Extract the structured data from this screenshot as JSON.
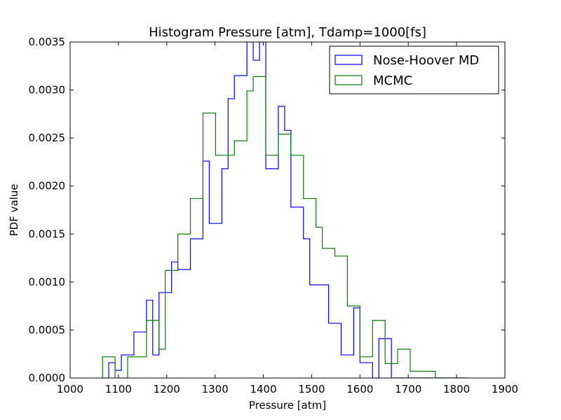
{
  "chart_data": {
    "type": "histogram",
    "title": "Histogram Pressure [atm], Tdamp=1000[fs]",
    "xlabel": "Pressure [atm]",
    "ylabel": "PDF value",
    "xlim": [
      1000,
      1900
    ],
    "ylim": [
      0,
      0.0035
    ],
    "x_ticks": [
      "1000",
      "1100",
      "1200",
      "1300",
      "1400",
      "1500",
      "1600",
      "1700",
      "1800",
      "1900"
    ],
    "y_ticks": [
      "0.0000",
      "0.0005",
      "0.0010",
      "0.0015",
      "0.0020",
      "0.0025",
      "0.0030",
      "0.0035"
    ],
    "legend_position": "top-right",
    "series": [
      {
        "name": "Nose-Hoover MD",
        "color": "#0000ff",
        "bin_edges": [
          1067,
          1080,
          1093,
          1106,
          1119,
          1132,
          1145,
          1158,
          1171,
          1184,
          1197,
          1210,
          1223,
          1236,
          1249,
          1262,
          1275,
          1288,
          1301,
          1314,
          1327,
          1340,
          1353,
          1366,
          1379,
          1392,
          1405,
          1418,
          1431,
          1444,
          1457,
          1470,
          1483,
          1496,
          1509,
          1522,
          1535,
          1548,
          1561,
          1574,
          1587,
          1600,
          1613,
          1626,
          1639,
          1652,
          1665,
          1678,
          1691,
          1704,
          1717,
          1730,
          1743,
          1756,
          1769,
          1782,
          1795,
          1808,
          1821
        ],
        "values": [
          0,
          0.00016,
          8e-05,
          0.00024,
          0.00024,
          0.00048,
          0.00048,
          0.00081,
          0.00024,
          0.00089,
          0.00089,
          0.00121,
          0.00113,
          0.00113,
          0.00145,
          0.00145,
          0.00226,
          0.00161,
          0.00161,
          0.00218,
          0.00291,
          0.00315,
          0.00315,
          0.0035,
          0.00331,
          0.0035,
          0.00218,
          0.00218,
          0.00283,
          0.00258,
          0.00178,
          0.00178,
          0.00145,
          0.00097,
          0.00097,
          0.00097,
          0.00057,
          0.00057,
          0.00024,
          0.00024,
          0.00073,
          0.00016,
          0.00016,
          0,
          0.00041,
          0.00041,
          0,
          0,
          0,
          0,
          0,
          0,
          0,
          0,
          0,
          0,
          0,
          0
        ]
      },
      {
        "name": "MCMC",
        "color": "#008000",
        "bin_edges": [
          1067,
          1080,
          1093,
          1106,
          1119,
          1132,
          1145,
          1158,
          1171,
          1184,
          1197,
          1210,
          1223,
          1236,
          1249,
          1262,
          1275,
          1288,
          1301,
          1314,
          1327,
          1340,
          1353,
          1366,
          1379,
          1392,
          1405,
          1418,
          1431,
          1444,
          1457,
          1470,
          1483,
          1496,
          1509,
          1522,
          1535,
          1548,
          1561,
          1574,
          1587,
          1600,
          1613,
          1626,
          1639,
          1652,
          1665,
          1678,
          1691,
          1704,
          1717,
          1730,
          1743,
          1756,
          1769,
          1782,
          1795,
          1808,
          1821
        ],
        "values": [
          0.00022,
          0.00022,
          0,
          0,
          0.00022,
          0.00022,
          0.00022,
          0.0006,
          0.0006,
          0.0003,
          0.00112,
          0.00112,
          0.0015,
          0.0015,
          0.00187,
          0.00187,
          0.00276,
          0.00276,
          0.00232,
          0.00232,
          0.00232,
          0.00247,
          0.00247,
          0.00299,
          0.00314,
          0.00314,
          0.00232,
          0.00232,
          0.00254,
          0.00254,
          0.00232,
          0.00232,
          0.00187,
          0.00187,
          0.00157,
          0.00135,
          0.00135,
          0.00127,
          0.00127,
          0.00075,
          0.00075,
          0.00022,
          0.00022,
          0.0006,
          0.0006,
          0.00015,
          0.00015,
          0.0003,
          0.0003,
          7e-05,
          7e-05,
          7e-05,
          7e-05,
          0,
          0,
          0,
          0,
          0
        ]
      }
    ]
  }
}
